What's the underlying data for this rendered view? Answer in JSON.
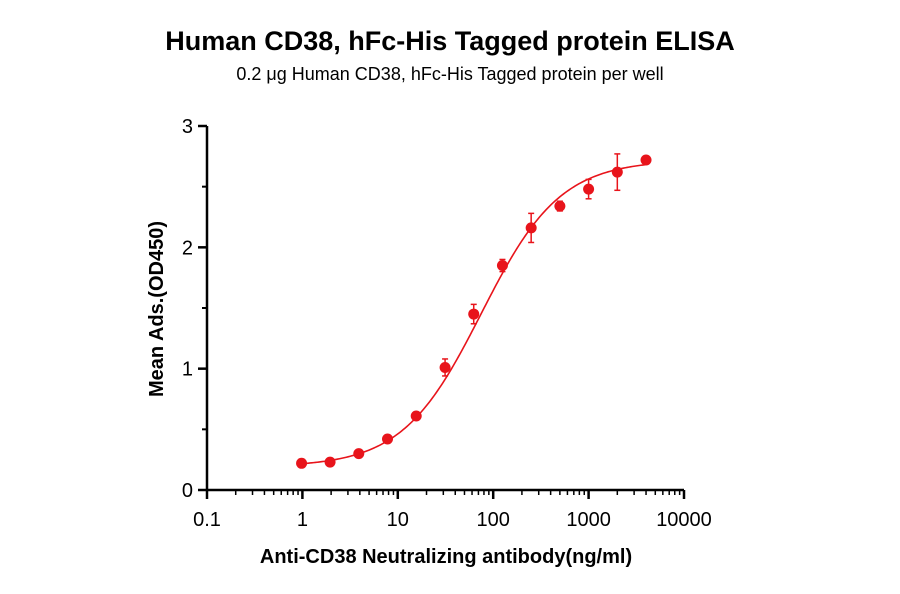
{
  "chart_data": {
    "type": "scatter",
    "title": "Human CD38, hFc-His Tagged protein ELISA",
    "subtitle": "0.2 μg Human CD38, hFc-His Tagged protein per well",
    "xlabel": "Anti-CD38 Neutralizing antibody(ng/ml)",
    "ylabel": "Mean Ads.(OD450)",
    "x_scale": "log",
    "xlim": [
      0.1,
      10000
    ],
    "ylim": [
      0,
      3
    ],
    "x_ticks": [
      "0.1",
      "1",
      "10",
      "100",
      "1000",
      "10000"
    ],
    "y_ticks": [
      "0",
      "1",
      "2",
      "3"
    ],
    "grid": false,
    "colors": {
      "series": "#e8141b",
      "axis": "#000000"
    },
    "series": [
      {
        "x": [
          0.98,
          1.95,
          3.9,
          7.8,
          15.6,
          31.3,
          62.5,
          125,
          250,
          500,
          1000,
          2000,
          4000
        ],
        "y": [
          0.22,
          0.23,
          0.3,
          0.42,
          0.61,
          1.01,
          1.45,
          1.85,
          2.16,
          2.34,
          2.48,
          2.62,
          2.72
        ],
        "err": [
          0.02,
          0.02,
          0.02,
          0.02,
          0.03,
          0.07,
          0.08,
          0.05,
          0.12,
          0.04,
          0.08,
          0.15,
          0.03
        ]
      }
    ],
    "fit": {
      "model": "4PL",
      "bottom": 0.19,
      "top": 2.72,
      "ec50": 75,
      "hill": 1.05
    }
  }
}
